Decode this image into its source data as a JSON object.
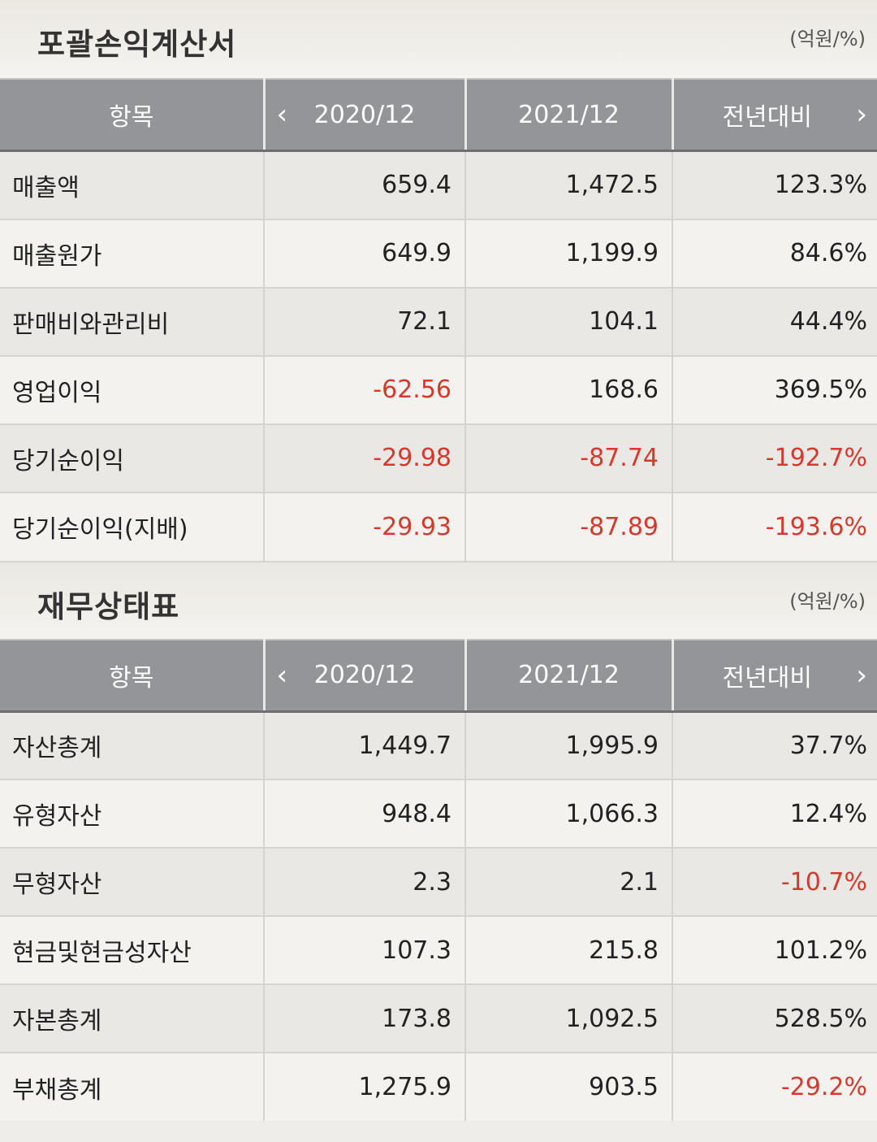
{
  "income": {
    "title": "포괄손익계산서",
    "unit": "(억원/%)",
    "header": {
      "item": "항목",
      "col1": "2020/12",
      "col2": "2021/12",
      "col3": "전년대비",
      "prev": "‹",
      "next": "›"
    },
    "rows": [
      {
        "label": "매출액",
        "v1": "659.4",
        "v2": "1,472.5",
        "v3": "123.3%"
      },
      {
        "label": "매출원가",
        "v1": "649.9",
        "v2": "1,199.9",
        "v3": "84.6%"
      },
      {
        "label": "판매비와관리비",
        "v1": "72.1",
        "v2": "104.1",
        "v3": "44.4%"
      },
      {
        "label": "영업이익",
        "v1": "-62.56",
        "v2": "168.6",
        "v3": "369.5%"
      },
      {
        "label": "당기순이익",
        "v1": "-29.98",
        "v2": "-87.74",
        "v3": "-192.7%"
      },
      {
        "label": "당기순이익(지배)",
        "v1": "-29.93",
        "v2": "-87.89",
        "v3": "-193.6%"
      }
    ]
  },
  "balance": {
    "title": "재무상태표",
    "unit": "(억원/%)",
    "header": {
      "item": "항목",
      "col1": "2020/12",
      "col2": "2021/12",
      "col3": "전년대비",
      "prev": "‹",
      "next": "›"
    },
    "rows": [
      {
        "label": "자산총계",
        "v1": "1,449.7",
        "v2": "1,995.9",
        "v3": "37.7%"
      },
      {
        "label": "유형자산",
        "v1": "948.4",
        "v2": "1,066.3",
        "v3": "12.4%"
      },
      {
        "label": "무형자산",
        "v1": "2.3",
        "v2": "2.1",
        "v3": "-10.7%"
      },
      {
        "label": "현금및현금성자산",
        "v1": "107.3",
        "v2": "215.8",
        "v3": "101.2%"
      },
      {
        "label": "자본총계",
        "v1": "173.8",
        "v2": "1,092.5",
        "v3": "528.5%"
      },
      {
        "label": "부채총계",
        "v1": "1,275.9",
        "v2": "903.5",
        "v3": "-29.2%"
      }
    ]
  },
  "colors": {
    "header_bg": "#939599",
    "negative": "#d8372b"
  }
}
